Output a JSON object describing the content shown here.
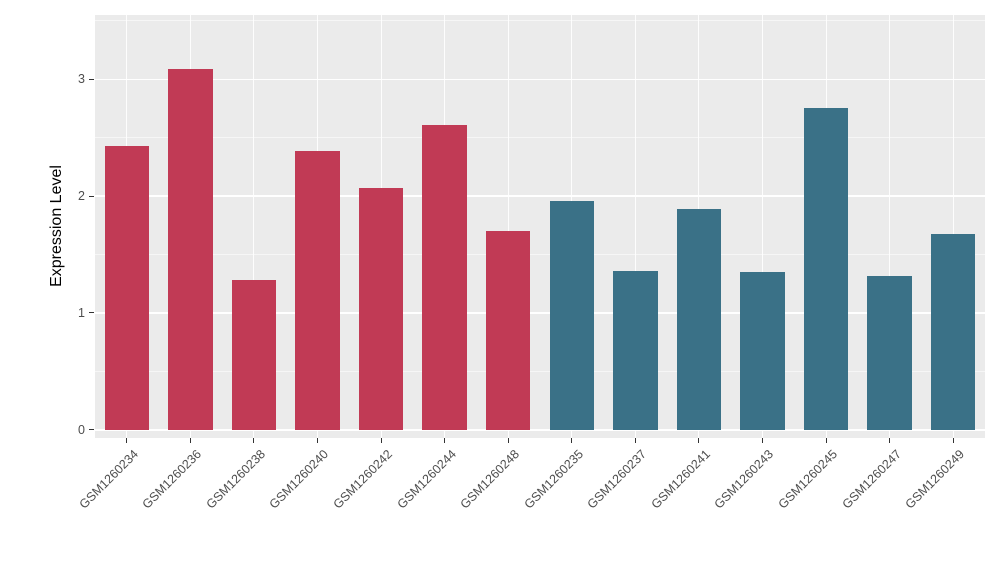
{
  "chart_data": {
    "type": "bar",
    "title": "",
    "xlabel": "",
    "ylabel": "Expression Level",
    "categories": [
      "GSM1260234",
      "GSM1260236",
      "GSM1260238",
      "GSM1260240",
      "GSM1260242",
      "GSM1260244",
      "GSM1260248",
      "GSM1260235",
      "GSM1260237",
      "GSM1260241",
      "GSM1260243",
      "GSM1260245",
      "GSM1260247",
      "GSM1260249"
    ],
    "values": [
      2.43,
      3.09,
      1.28,
      2.39,
      2.07,
      2.61,
      1.7,
      1.96,
      1.36,
      1.89,
      1.35,
      2.75,
      1.32,
      1.68
    ],
    "groups": [
      "A",
      "A",
      "A",
      "A",
      "A",
      "A",
      "A",
      "B",
      "B",
      "B",
      "B",
      "B",
      "B",
      "B"
    ],
    "group_colors": {
      "A": "#C13A55",
      "B": "#3A7187"
    },
    "yticks": [
      0,
      1,
      2,
      3
    ],
    "minor_ticks": [
      0.5,
      1.5,
      2.5,
      3.5
    ],
    "ylim": [
      -0.07,
      3.55
    ],
    "bar_width_fraction": 0.7,
    "panel_bg": "#EBEBEB",
    "grid_color": "#FFFFFF",
    "tick_label_color": "#4D4D4D",
    "legend": "none",
    "grid": "on"
  }
}
